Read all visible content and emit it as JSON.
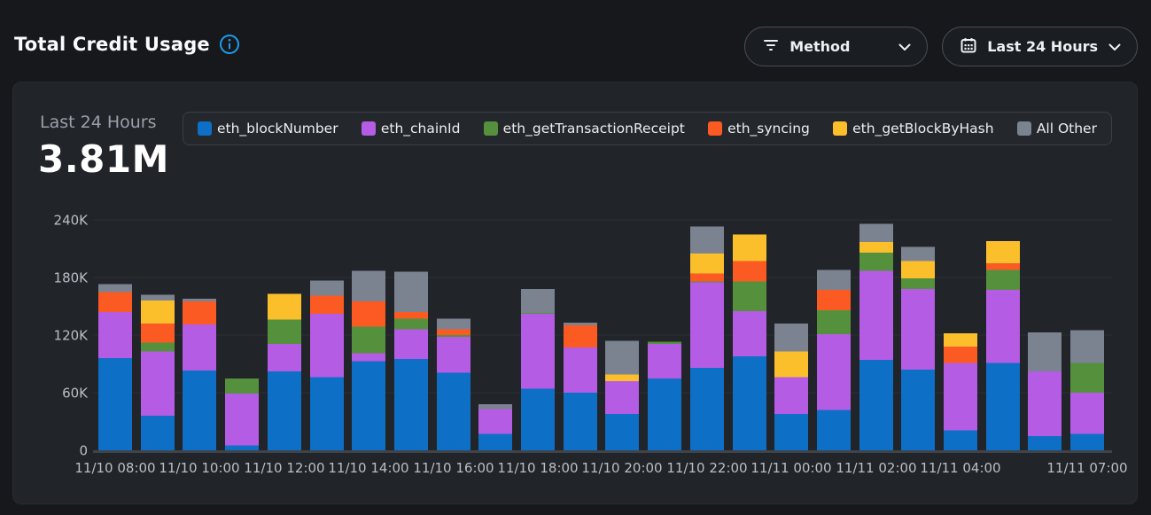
{
  "header": {
    "title": "Total Credit Usage",
    "info_icon": "info-icon",
    "filters": [
      {
        "label": "Method",
        "icon": "filter-icon"
      },
      {
        "label": "Last 24 Hours",
        "icon": "calendar-icon"
      }
    ]
  },
  "card": {
    "period_label": "Last 24 Hours",
    "total_value": "3.81M"
  },
  "colors": {
    "page_bg": "#17181c",
    "card_bg": "#212429",
    "accent_blue": "#1e9bef",
    "gridline": "#2b2f35",
    "baseline": "#3f444b",
    "tick_text": "#b9bfc7"
  },
  "chart_data": {
    "type": "bar",
    "stacked": true,
    "units": "credits (thousands)",
    "ylim_thousands": [
      0,
      240
    ],
    "grid": true,
    "legend_position": "top",
    "categories": [
      "11/10 08:00",
      "11/10 09:00",
      "11/10 10:00",
      "11/10 11:00",
      "11/10 12:00",
      "11/10 13:00",
      "11/10 14:00",
      "11/10 15:00",
      "11/10 16:00",
      "11/10 17:00",
      "11/10 18:00",
      "11/10 19:00",
      "11/10 20:00",
      "11/10 21:00",
      "11/10 22:00",
      "11/10 23:00",
      "11/11 00:00",
      "11/11 01:00",
      "11/11 02:00",
      "11/11 03:00",
      "11/11 04:00",
      "11/11 05:00",
      "11/11 06:00",
      "11/11 07:00"
    ],
    "y_ticks": [
      {
        "value": 0,
        "label": "0"
      },
      {
        "value": 60,
        "label": "60K"
      },
      {
        "value": 120,
        "label": "120K"
      },
      {
        "value": 180,
        "label": "180K"
      },
      {
        "value": 240,
        "label": "240K"
      }
    ],
    "x_ticks": [
      {
        "index": 0,
        "label": "11/10 08:00"
      },
      {
        "index": 2,
        "label": "11/10 10:00"
      },
      {
        "index": 4,
        "label": "11/10 12:00"
      },
      {
        "index": 6,
        "label": "11/10 14:00"
      },
      {
        "index": 8,
        "label": "11/10 16:00"
      },
      {
        "index": 10,
        "label": "11/10 18:00"
      },
      {
        "index": 12,
        "label": "11/10 20:00"
      },
      {
        "index": 14,
        "label": "11/10 22:00"
      },
      {
        "index": 16,
        "label": "11/11 00:00"
      },
      {
        "index": 18,
        "label": "11/11 02:00"
      },
      {
        "index": 20,
        "label": "11/11 04:00"
      },
      {
        "index": 23,
        "label": "11/11 07:00"
      }
    ],
    "series": [
      {
        "name": "eth_blockNumber",
        "color": "#0d6fc5",
        "values": [
          96,
          36,
          83,
          5,
          82,
          76,
          93,
          95,
          81,
          17,
          64,
          60,
          38,
          75,
          86,
          98,
          38,
          42,
          94,
          84,
          21,
          91,
          15,
          17
        ]
      },
      {
        "name": "eth_chainId",
        "color": "#b45ce4",
        "values": [
          48,
          67,
          48,
          54,
          29,
          66,
          8,
          31,
          37,
          26,
          78,
          47,
          34,
          36,
          89,
          47,
          38,
          79,
          93,
          84,
          70,
          76,
          67,
          43
        ]
      },
      {
        "name": "eth_getTransactionReceipt",
        "color": "#55913d",
        "values": [
          0,
          9,
          0,
          16,
          25,
          0,
          28,
          11,
          2,
          0,
          1,
          0,
          0,
          2,
          1,
          31,
          0,
          25,
          19,
          11,
          0,
          21,
          0,
          31
        ]
      },
      {
        "name": "eth_syncing",
        "color": "#fb5a23",
        "values": [
          21,
          20,
          24,
          0,
          0,
          19,
          26,
          7,
          6,
          0,
          0,
          23,
          0,
          0,
          8,
          21,
          0,
          21,
          0,
          0,
          17,
          7,
          0,
          0
        ]
      },
      {
        "name": "eth_getBlockByHash",
        "color": "#fcbf2c",
        "values": [
          0,
          24,
          0,
          0,
          27,
          0,
          0,
          0,
          0,
          0,
          0,
          0,
          7,
          0,
          21,
          28,
          27,
          0,
          11,
          18,
          14,
          23,
          0,
          0
        ]
      },
      {
        "name": "All Other",
        "color": "#7b8290",
        "values": [
          8,
          6,
          3,
          0,
          0,
          16,
          32,
          42,
          11,
          5,
          25,
          3,
          35,
          0,
          28,
          0,
          29,
          21,
          19,
          15,
          0,
          0,
          41,
          34
        ]
      }
    ]
  }
}
